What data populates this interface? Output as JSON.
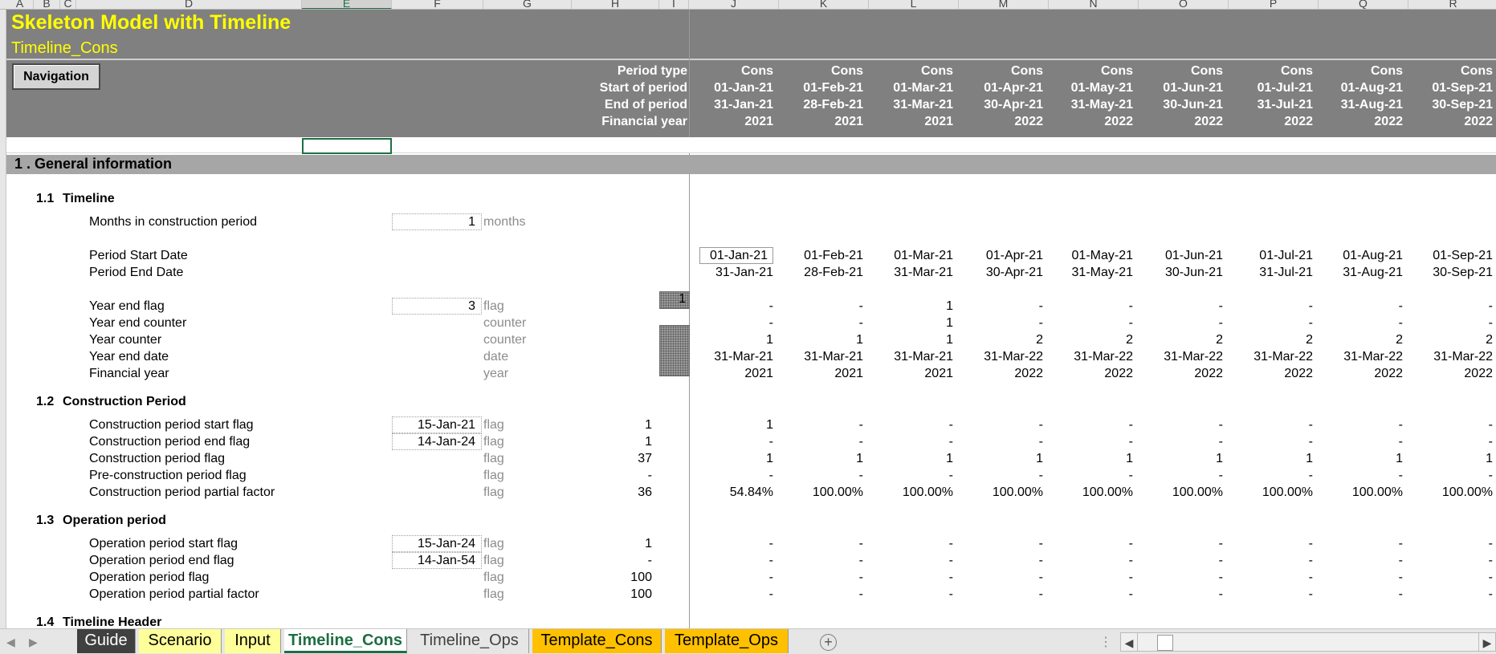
{
  "column_letters": [
    "A",
    "B",
    "C",
    "D",
    "E",
    "F",
    "G",
    "H",
    "I",
    "J",
    "K",
    "L",
    "M",
    "N",
    "O",
    "P",
    "Q",
    "R"
  ],
  "selected_column": "E",
  "header": {
    "title": "Skeleton Model with Timeline",
    "subtitle": "Timeline_Cons",
    "navigation_button": "Navigation",
    "row_labels": [
      "Period type",
      "Start of period",
      "End of period",
      "Financial year"
    ],
    "columns": [
      {
        "type": "Cons",
        "start": "01-Jan-21",
        "end": "31-Jan-21",
        "fy": "2021"
      },
      {
        "type": "Cons",
        "start": "01-Feb-21",
        "end": "28-Feb-21",
        "fy": "2021"
      },
      {
        "type": "Cons",
        "start": "01-Mar-21",
        "end": "31-Mar-21",
        "fy": "2021"
      },
      {
        "type": "Cons",
        "start": "01-Apr-21",
        "end": "30-Apr-21",
        "fy": "2022"
      },
      {
        "type": "Cons",
        "start": "01-May-21",
        "end": "31-May-21",
        "fy": "2022"
      },
      {
        "type": "Cons",
        "start": "01-Jun-21",
        "end": "30-Jun-21",
        "fy": "2022"
      },
      {
        "type": "Cons",
        "start": "01-Jul-21",
        "end": "31-Jul-21",
        "fy": "2022"
      },
      {
        "type": "Cons",
        "start": "01-Aug-21",
        "end": "31-Aug-21",
        "fy": "2022"
      },
      {
        "type": "Cons",
        "start": "01-Sep-21",
        "end": "30-Sep-21",
        "fy": "2022"
      }
    ]
  },
  "section_title": "1 . General information",
  "sub1": {
    "num": "1.1",
    "title": "Timeline"
  },
  "sub2": {
    "num": "1.2",
    "title": "Construction Period"
  },
  "sub3": {
    "num": "1.3",
    "title": "Operation period"
  },
  "sub4": {
    "num": "1.4",
    "title": "Timeline Header"
  },
  "rows": [
    {
      "label": "Months in construction period",
      "input": "1",
      "unit": "months",
      "total": "",
      "values": []
    },
    {
      "label": "Period Start Date",
      "input": "",
      "unit": "",
      "total": "",
      "values": [
        "01-Jan-21",
        "01-Feb-21",
        "01-Mar-21",
        "01-Apr-21",
        "01-May-21",
        "01-Jun-21",
        "01-Jul-21",
        "01-Aug-21",
        "01-Sep-21"
      ]
    },
    {
      "label": "Period End Date",
      "input": "",
      "unit": "",
      "total": "",
      "values": [
        "31-Jan-21",
        "28-Feb-21",
        "31-Mar-21",
        "30-Apr-21",
        "31-May-21",
        "30-Jun-21",
        "31-Jul-21",
        "31-Aug-21",
        "30-Sep-21"
      ]
    },
    {
      "label": "Year end flag",
      "input": "3",
      "unit": "flag",
      "total": "",
      "hatch": "1",
      "values": [
        "-",
        "-",
        "1",
        "-",
        "-",
        "-",
        "-",
        "-",
        "-"
      ]
    },
    {
      "label": "Year end counter",
      "input": "",
      "unit": "counter",
      "total": "",
      "values": [
        "-",
        "-",
        "1",
        "-",
        "-",
        "-",
        "-",
        "-",
        "-"
      ]
    },
    {
      "label": "Year counter",
      "input": "",
      "unit": "counter",
      "total": "",
      "values": [
        "1",
        "1",
        "1",
        "2",
        "2",
        "2",
        "2",
        "2",
        "2"
      ]
    },
    {
      "label": "Year end date",
      "input": "",
      "unit": "date",
      "total": "",
      "values": [
        "31-Mar-21",
        "31-Mar-21",
        "31-Mar-21",
        "31-Mar-22",
        "31-Mar-22",
        "31-Mar-22",
        "31-Mar-22",
        "31-Mar-22",
        "31-Mar-22"
      ]
    },
    {
      "label": "Financial year",
      "input": "",
      "unit": "year",
      "total": "",
      "values": [
        "2021",
        "2021",
        "2021",
        "2022",
        "2022",
        "2022",
        "2022",
        "2022",
        "2022"
      ]
    },
    {
      "label": "Construction period start flag",
      "input": "15-Jan-21",
      "unit": "flag",
      "total": "1",
      "values": [
        "1",
        "-",
        "-",
        "-",
        "-",
        "-",
        "-",
        "-",
        "-"
      ]
    },
    {
      "label": "Construction period end flag",
      "input": "14-Jan-24",
      "unit": "flag",
      "total": "1",
      "values": [
        "-",
        "-",
        "-",
        "-",
        "-",
        "-",
        "-",
        "-",
        "-"
      ]
    },
    {
      "label": "Construction period flag",
      "input": "",
      "unit": "flag",
      "total": "37",
      "values": [
        "1",
        "1",
        "1",
        "1",
        "1",
        "1",
        "1",
        "1",
        "1"
      ]
    },
    {
      "label": "Pre-construction period flag",
      "input": "",
      "unit": "flag",
      "total": "-",
      "values": [
        "-",
        "-",
        "-",
        "-",
        "-",
        "-",
        "-",
        "-",
        "-"
      ]
    },
    {
      "label": "Construction period partial factor",
      "input": "",
      "unit": "flag",
      "total": "36",
      "values": [
        "54.84%",
        "100.00%",
        "100.00%",
        "100.00%",
        "100.00%",
        "100.00%",
        "100.00%",
        "100.00%",
        "100.00%"
      ]
    },
    {
      "label": "Operation period start flag",
      "input": "15-Jan-24",
      "unit": "flag",
      "total": "1",
      "values": [
        "-",
        "-",
        "-",
        "-",
        "-",
        "-",
        "-",
        "-",
        "-"
      ]
    },
    {
      "label": "Operation period end flag",
      "input": "14-Jan-54",
      "unit": "flag",
      "total": "-",
      "values": [
        "-",
        "-",
        "-",
        "-",
        "-",
        "-",
        "-",
        "-",
        "-"
      ]
    },
    {
      "label": "Operation period flag",
      "input": "",
      "unit": "flag",
      "total": "100",
      "values": [
        "-",
        "-",
        "-",
        "-",
        "-",
        "-",
        "-",
        "-",
        "-"
      ]
    },
    {
      "label": "Operation period partial factor",
      "input": "",
      "unit": "flag",
      "total": "100",
      "values": [
        "-",
        "-",
        "-",
        "-",
        "-",
        "-",
        "-",
        "-",
        "-"
      ]
    }
  ],
  "tabs": [
    {
      "label": "Guide",
      "bg": "#404040",
      "color": "#ffffff"
    },
    {
      "label": "Scenario",
      "bg": "#ffff99",
      "color": "#000000"
    },
    {
      "label": "Input",
      "bg": "#ffff99",
      "color": "#000000"
    },
    {
      "label": "Timeline_Cons",
      "bg": "#ffffff",
      "color": "#1f6e43",
      "active": true
    },
    {
      "label": "Timeline_Ops",
      "bg": "#e6e6e6",
      "color": "#404040"
    },
    {
      "label": "Template_Cons",
      "bg": "#ffc000",
      "color": "#000000"
    },
    {
      "label": "Template_Ops",
      "bg": "#ffc000",
      "color": "#000000"
    }
  ]
}
